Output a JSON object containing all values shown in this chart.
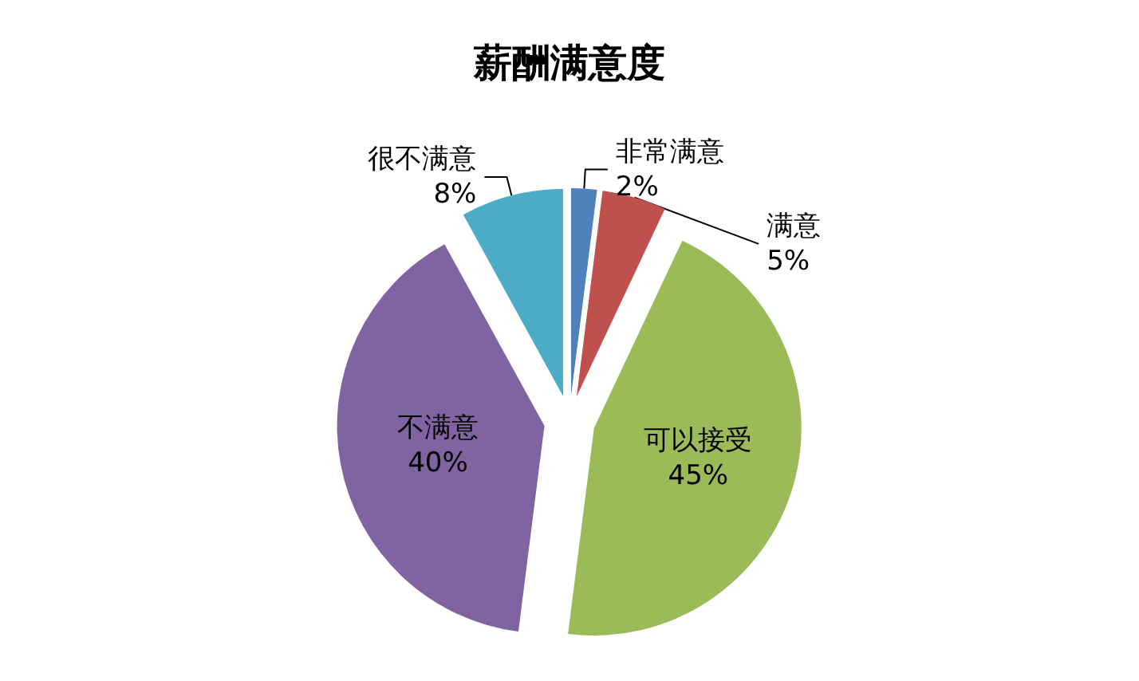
{
  "chart_data": {
    "type": "pie",
    "title": "薪酬满意度",
    "categories": [
      "非常满意",
      "满意",
      "可以接受",
      "不满意",
      "很不满意"
    ],
    "values": [
      2,
      5,
      45,
      40,
      8
    ],
    "colors": [
      "#4f81bd",
      "#c0504d",
      "#9bbb59",
      "#8064a2",
      "#4bacc6"
    ],
    "value_labels": [
      "2%",
      "5%",
      "45%",
      "40%",
      "8%"
    ]
  }
}
